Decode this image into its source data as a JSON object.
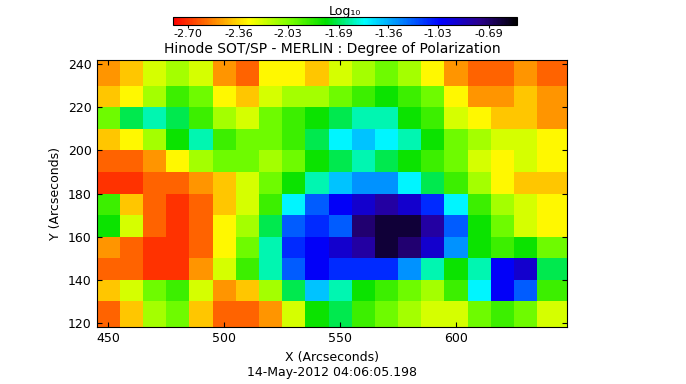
{
  "chart_data": {
    "type": "heatmap",
    "title": "Hinode SOT/SP - MERLIN : Degree of Polarization",
    "x_label": "X (Arcseconds)",
    "y_label": "Y (Arcseconds)",
    "annotations": [
      "14-May-2012 04:06:05.198"
    ],
    "xlim": [
      445,
      648
    ],
    "ylim": [
      118,
      242
    ],
    "xticks": [
      450,
      500,
      550,
      600
    ],
    "yticks": [
      120,
      140,
      160,
      180,
      200,
      220,
      240
    ],
    "x_edges": [
      445,
      455,
      465,
      475,
      485,
      495,
      505,
      515,
      525,
      535,
      545,
      555,
      565,
      575,
      585,
      595,
      605,
      615,
      625,
      635,
      648
    ],
    "y_edges": [
      118,
      130,
      140,
      150,
      160,
      170,
      180,
      190,
      200,
      210,
      220,
      230,
      242
    ],
    "cells": [
      [
        -2.6,
        -2.4,
        -2.1,
        -2.0,
        -2.4,
        -2.6,
        -2.6,
        -2.5,
        -2.2,
        -1.8,
        -1.7,
        -1.9,
        -2.0,
        -2.1,
        -2.2,
        -2.2,
        -2.0,
        -1.9,
        -2.0,
        -2.2
      ],
      [
        -2.4,
        -2.2,
        -2.0,
        -1.9,
        -2.2,
        -2.5,
        -2.4,
        -2.1,
        -1.7,
        -1.4,
        -1.6,
        -1.8,
        -1.9,
        -2.0,
        -2.1,
        -1.9,
        -1.5,
        -1.0,
        -1.2,
        -1.9
      ],
      [
        -2.6,
        -2.6,
        -2.7,
        -2.7,
        -2.5,
        -2.2,
        -1.9,
        -1.6,
        -1.2,
        -1.0,
        -1.1,
        -1.1,
        -1.1,
        -1.3,
        -1.6,
        -1.8,
        -1.6,
        -1.0,
        -0.9,
        -1.7
      ],
      [
        -2.5,
        -2.6,
        -2.7,
        -2.7,
        -2.6,
        -2.3,
        -2.0,
        -1.6,
        -1.1,
        -1.0,
        -0.9,
        -0.8,
        -0.6,
        -0.7,
        -0.9,
        -1.3,
        -1.8,
        -1.9,
        -1.8,
        -2.0
      ],
      [
        -1.8,
        -2.2,
        -2.6,
        -2.7,
        -2.6,
        -2.3,
        -2.1,
        -1.7,
        -1.2,
        -1.1,
        -1.2,
        -0.7,
        -0.6,
        -0.6,
        -0.8,
        -1.2,
        -1.8,
        -2.0,
        -2.2,
        -2.3
      ],
      [
        -1.9,
        -2.4,
        -2.6,
        -2.7,
        -2.6,
        -2.4,
        -2.2,
        -1.9,
        -1.5,
        -1.2,
        -1.0,
        -0.9,
        -0.8,
        -0.9,
        -1.1,
        -1.5,
        -1.9,
        -2.1,
        -2.2,
        -2.3
      ],
      [
        -2.7,
        -2.7,
        -2.6,
        -2.6,
        -2.5,
        -2.4,
        -2.2,
        -2.0,
        -1.8,
        -1.6,
        -1.4,
        -1.3,
        -1.3,
        -1.5,
        -1.7,
        -1.9,
        -2.1,
        -2.3,
        -2.4,
        -2.4
      ],
      [
        -2.6,
        -2.6,
        -2.5,
        -2.3,
        -2.1,
        -2.0,
        -2.0,
        -2.1,
        -2.0,
        -1.8,
        -1.7,
        -1.6,
        -1.7,
        -1.8,
        -1.9,
        -2.0,
        -2.2,
        -2.3,
        -2.2,
        -2.3
      ],
      [
        -2.4,
        -2.3,
        -2.1,
        -1.8,
        -1.6,
        -1.9,
        -2.0,
        -2.0,
        -1.9,
        -1.7,
        -1.5,
        -1.4,
        -1.5,
        -1.6,
        -1.8,
        -2.0,
        -2.1,
        -2.2,
        -2.2,
        -2.3
      ],
      [
        -2.0,
        -1.7,
        -1.6,
        -1.7,
        -1.9,
        -2.1,
        -2.2,
        -2.0,
        -1.9,
        -1.8,
        -1.7,
        -1.6,
        -1.6,
        -1.8,
        -1.9,
        -2.2,
        -2.3,
        -2.4,
        -2.4,
        -2.5
      ],
      [
        -2.4,
        -2.3,
        -2.1,
        -1.9,
        -2.0,
        -2.3,
        -2.4,
        -2.2,
        -2.1,
        -2.1,
        -2.0,
        -1.9,
        -1.8,
        -1.9,
        -2.0,
        -2.3,
        -2.5,
        -2.5,
        -2.4,
        -2.5
      ],
      [
        -2.5,
        -2.4,
        -2.2,
        -2.1,
        -2.2,
        -2.5,
        -2.6,
        -2.3,
        -2.3,
        -2.4,
        -2.2,
        -2.1,
        -2.0,
        -2.1,
        -2.3,
        -2.5,
        -2.6,
        -2.6,
        -2.5,
        -2.6
      ]
    ],
    "colorbar": {
      "label": "Log₁₀",
      "range": [
        -2.8,
        -0.5
      ],
      "ticks": [
        {
          "value": -2.7,
          "label": "-2.70"
        },
        {
          "value": -2.36,
          "label": "-2.36"
        },
        {
          "value": -2.03,
          "label": "-2.03"
        },
        {
          "value": -1.69,
          "label": "-1.69"
        },
        {
          "value": -1.36,
          "label": "-1.36"
        },
        {
          "value": -1.03,
          "label": "-1.03"
        },
        {
          "value": -0.69,
          "label": "-0.69"
        }
      ]
    }
  }
}
